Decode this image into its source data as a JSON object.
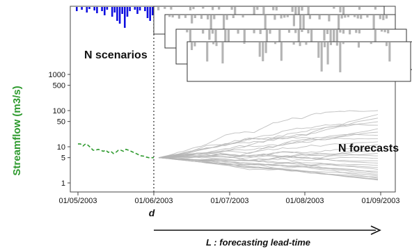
{
  "chart_data": {
    "type": "line",
    "ylabel": "Streamflow (m3/s)",
    "y_scale": "log",
    "y_ticks": [
      "1",
      "5",
      "10",
      "50",
      "100",
      "500",
      "1000"
    ],
    "x_ticks": [
      "01/05/2003",
      "01/06/2003",
      "01/07/2003",
      "01/08/2003",
      "01/09/2003"
    ],
    "forecast_start_label": "d",
    "scenarios_label": "N scenarios",
    "forecasts_label": "N forecasts",
    "lead_time_label": "L : forecasting lead-time",
    "observed_series": {
      "name": "observed streamflow",
      "color": "#2e9a2e",
      "start": "01/05/2003",
      "values": [
        12,
        12,
        10.5,
        12,
        11,
        9.5,
        8,
        8,
        8.5,
        8,
        7.5,
        8,
        7,
        7.5,
        6.5,
        7,
        8,
        8,
        7.5,
        8.5,
        8,
        7.5,
        7,
        6.5,
        6,
        5.6,
        5.5,
        5.2,
        5,
        5,
        5
      ]
    },
    "forecast_start_value": 5,
    "forecast_band": {
      "lower_end": 1.2,
      "upper_end": 100,
      "count": 30
    },
    "precip_observed_color": "#1010e0",
    "precip_scenario_color": "#b4b4b4",
    "scenario_panel_count": 5
  }
}
